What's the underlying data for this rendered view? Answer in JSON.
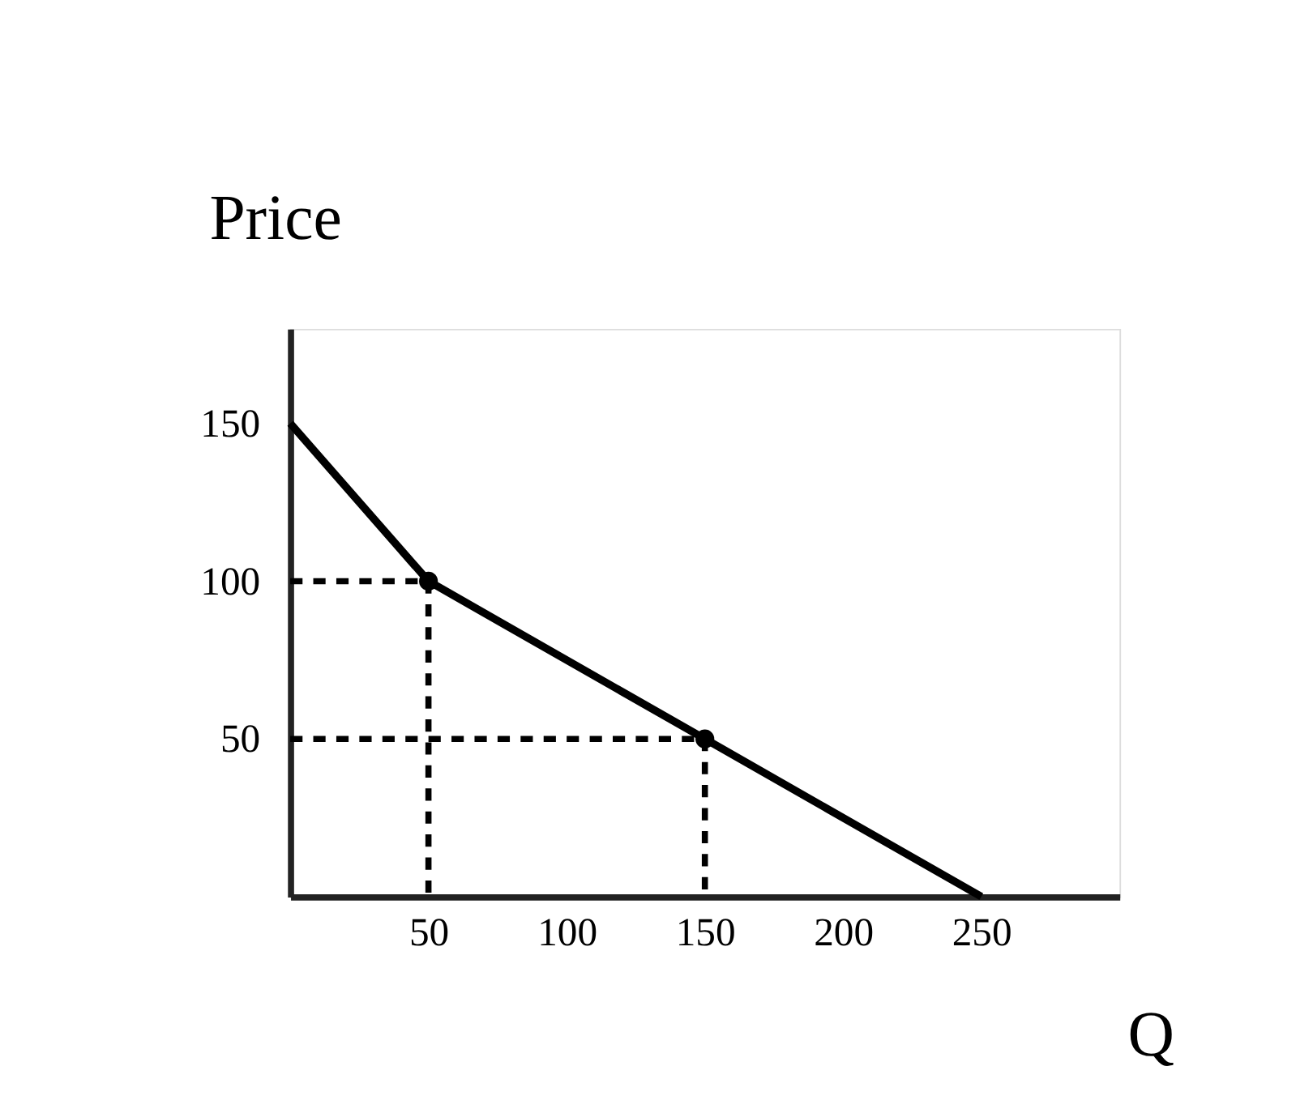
{
  "chart_data": {
    "type": "line",
    "xlabel": "Q",
    "ylabel": "Price",
    "xlim": [
      0,
      300
    ],
    "ylim": [
      0,
      180
    ],
    "xticks": [
      50,
      100,
      150,
      200,
      250
    ],
    "yticks": [
      50,
      100,
      150
    ],
    "grid": false,
    "series": [
      {
        "color": "#000000",
        "x": [
          0,
          50,
          150,
          250
        ],
        "values": [
          150,
          100,
          50,
          0
        ],
        "marker": "none",
        "line_style": "solid"
      },
      {
        "color": "#000000",
        "x": [
          0,
          50,
          50
        ],
        "values": [
          100,
          100,
          0
        ],
        "marker": "none",
        "line_style": "dashed"
      },
      {
        "color": "#000000",
        "x": [
          0,
          150,
          150
        ],
        "values": [
          50,
          50,
          0
        ],
        "marker": "none",
        "line_style": "dashed"
      },
      {
        "type": "scatter",
        "color": "#000000",
        "x": [
          50,
          150
        ],
        "values": [
          100,
          50
        ],
        "marker": "circle"
      }
    ]
  }
}
